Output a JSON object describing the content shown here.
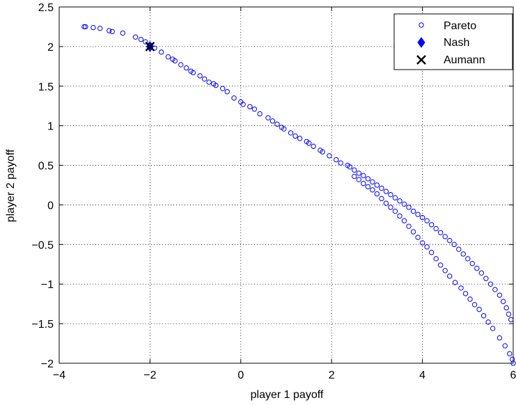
{
  "chart_data": {
    "type": "scatter",
    "xlabel": "player 1 payoff",
    "ylabel": "player 2 payoff",
    "xlim": [
      -4,
      6
    ],
    "ylim": [
      -2,
      2.5
    ],
    "xticks": [
      -4,
      -2,
      0,
      2,
      4,
      6
    ],
    "xtick_labels": [
      "−4",
      "−2",
      "0",
      "2",
      "4",
      "6"
    ],
    "yticks": [
      -2,
      -1.5,
      -1,
      -0.5,
      0,
      0.5,
      1,
      1.5,
      2,
      2.5
    ],
    "ytick_labels": [
      "−2",
      "−1.5",
      "−1",
      "−0.5",
      "0",
      "0.5",
      "1",
      "1.5",
      "2",
      "2.5"
    ],
    "grid": true,
    "legend_position": "top-right",
    "series": [
      {
        "name": "Pareto",
        "marker": "open-circle",
        "color": "#0000ff",
        "points": [
          [
            -3.45,
            2.25
          ],
          [
            -3.42,
            2.25
          ],
          [
            -3.25,
            2.24
          ],
          [
            -3.1,
            2.23
          ],
          [
            -2.9,
            2.2
          ],
          [
            -2.83,
            2.19
          ],
          [
            -2.6,
            2.17
          ],
          [
            -2.32,
            2.12
          ],
          [
            -2.2,
            2.09
          ],
          [
            -2.1,
            2.06
          ],
          [
            -2.0,
            2.02
          ],
          [
            -1.9,
            1.98
          ],
          [
            -1.75,
            1.93
          ],
          [
            -1.6,
            1.87
          ],
          [
            -1.5,
            1.84
          ],
          [
            -1.45,
            1.82
          ],
          [
            -1.32,
            1.77
          ],
          [
            -1.2,
            1.73
          ],
          [
            -1.1,
            1.69
          ],
          [
            -1.05,
            1.67
          ],
          [
            -0.9,
            1.63
          ],
          [
            -0.8,
            1.59
          ],
          [
            -0.7,
            1.55
          ],
          [
            -0.6,
            1.53
          ],
          [
            -0.55,
            1.51
          ],
          [
            -0.4,
            1.47
          ],
          [
            -0.3,
            1.43
          ],
          [
            -0.15,
            1.35
          ],
          [
            0.0,
            1.3
          ],
          [
            0.05,
            1.27
          ],
          [
            0.2,
            1.24
          ],
          [
            0.3,
            1.21
          ],
          [
            0.42,
            1.15
          ],
          [
            0.6,
            1.1
          ],
          [
            0.7,
            1.06
          ],
          [
            0.8,
            1.02
          ],
          [
            0.9,
            0.98
          ],
          [
            0.95,
            0.96
          ],
          [
            1.1,
            0.91
          ],
          [
            1.2,
            0.87
          ],
          [
            1.3,
            0.84
          ],
          [
            1.45,
            0.8
          ],
          [
            1.5,
            0.78
          ],
          [
            1.6,
            0.74
          ],
          [
            1.75,
            0.69
          ],
          [
            1.8,
            0.67
          ],
          [
            1.95,
            0.62
          ],
          [
            2.1,
            0.57
          ],
          [
            2.2,
            0.53
          ],
          [
            2.35,
            0.5
          ],
          [
            2.4,
            0.48
          ],
          [
            2.5,
            0.44
          ],
          [
            2.6,
            0.4
          ],
          [
            2.7,
            0.37
          ],
          [
            2.8,
            0.33
          ],
          [
            2.9,
            0.29
          ],
          [
            3.0,
            0.25
          ],
          [
            3.1,
            0.21
          ],
          [
            3.2,
            0.17
          ],
          [
            3.3,
            0.13
          ],
          [
            3.4,
            0.09
          ],
          [
            3.5,
            0.05
          ],
          [
            3.6,
            0.01
          ],
          [
            3.7,
            -0.03
          ],
          [
            3.8,
            -0.08
          ],
          [
            3.9,
            -0.12
          ],
          [
            4.0,
            -0.16
          ],
          [
            4.1,
            -0.2
          ],
          [
            4.2,
            -0.25
          ],
          [
            4.3,
            -0.3
          ],
          [
            4.4,
            -0.35
          ],
          [
            4.5,
            -0.4
          ],
          [
            4.6,
            -0.45
          ],
          [
            4.7,
            -0.5
          ],
          [
            4.8,
            -0.56
          ],
          [
            4.9,
            -0.62
          ],
          [
            5.0,
            -0.68
          ],
          [
            5.1,
            -0.74
          ],
          [
            5.2,
            -0.8
          ],
          [
            5.3,
            -0.86
          ],
          [
            5.4,
            -0.93
          ],
          [
            5.5,
            -1.0
          ],
          [
            5.6,
            -1.07
          ],
          [
            5.7,
            -1.14
          ],
          [
            5.78,
            -1.22
          ],
          [
            5.85,
            -1.3
          ],
          [
            5.9,
            -1.38
          ],
          [
            5.95,
            -1.45
          ],
          [
            6.0,
            -2.0
          ],
          [
            5.98,
            -1.95
          ],
          [
            5.92,
            -1.88
          ],
          [
            5.82,
            -1.78
          ],
          [
            5.7,
            -1.68
          ],
          [
            5.55,
            -1.56
          ],
          [
            5.45,
            -1.48
          ],
          [
            5.35,
            -1.4
          ],
          [
            5.25,
            -1.32
          ],
          [
            5.15,
            -1.26
          ],
          [
            5.05,
            -1.19
          ],
          [
            4.95,
            -1.12
          ],
          [
            4.85,
            -1.05
          ],
          [
            4.72,
            -0.98
          ],
          [
            4.6,
            -0.9
          ],
          [
            4.5,
            -0.83
          ],
          [
            4.4,
            -0.76
          ],
          [
            4.3,
            -0.68
          ],
          [
            4.2,
            -0.6
          ],
          [
            4.1,
            -0.53
          ],
          [
            4.0,
            -0.48
          ],
          [
            3.9,
            -0.41
          ],
          [
            3.8,
            -0.34
          ],
          [
            3.7,
            -0.27
          ],
          [
            3.6,
            -0.2
          ],
          [
            3.5,
            -0.14
          ],
          [
            3.4,
            -0.08
          ],
          [
            3.3,
            -0.03
          ],
          [
            3.2,
            0.02
          ],
          [
            3.1,
            0.08
          ],
          [
            3.0,
            0.14
          ],
          [
            2.9,
            0.19
          ],
          [
            2.8,
            0.23
          ],
          [
            2.7,
            0.27
          ],
          [
            2.6,
            0.32
          ],
          [
            2.5,
            0.36
          ]
        ]
      },
      {
        "name": "Nash",
        "marker": "filled-diamond",
        "color": "#0000ff",
        "points": [
          [
            -2.0,
            2.0
          ]
        ]
      },
      {
        "name": "Aumann",
        "marker": "x",
        "color": "#000000",
        "points": [
          [
            -2.0,
            2.0
          ]
        ]
      }
    ]
  },
  "legend": {
    "items": [
      {
        "label": "Pareto",
        "icon": "open-circle-icon"
      },
      {
        "label": "Nash",
        "icon": "diamond-icon"
      },
      {
        "label": "Aumann",
        "icon": "x-icon"
      }
    ]
  }
}
